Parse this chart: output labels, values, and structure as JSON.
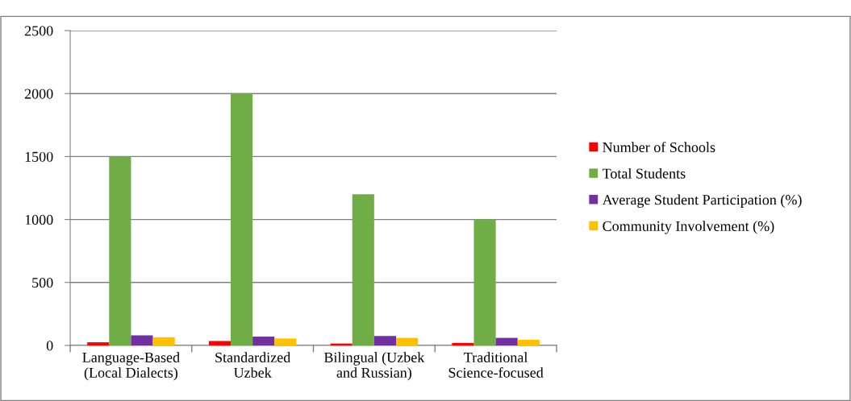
{
  "chart_data": {
    "type": "bar",
    "categories": [
      "Language-Based\n(Local Dialects)",
      "Standardized\nUzbek",
      "Bilingual (Uzbek\nand Russian)",
      "Traditional\nScience-focused"
    ],
    "series": [
      {
        "name": "Number of Schools",
        "color": "#ff0000",
        "values": [
          25,
          35,
          15,
          20
        ]
      },
      {
        "name": "Total Students",
        "color": "#70ad47",
        "values": [
          1500,
          2000,
          1200,
          1000
        ]
      },
      {
        "name": "Average Student Participation (%)",
        "color": "#7030a0",
        "values": [
          80,
          70,
          75,
          60
        ]
      },
      {
        "name": "Community Involvement (%)",
        "color": "#ffc000",
        "values": [
          65,
          55,
          60,
          45
        ]
      }
    ],
    "ylim": [
      0,
      2500
    ],
    "yticks": [
      0,
      500,
      1000,
      1500,
      2000,
      2500
    ],
    "grid": "y",
    "legend": "right"
  }
}
